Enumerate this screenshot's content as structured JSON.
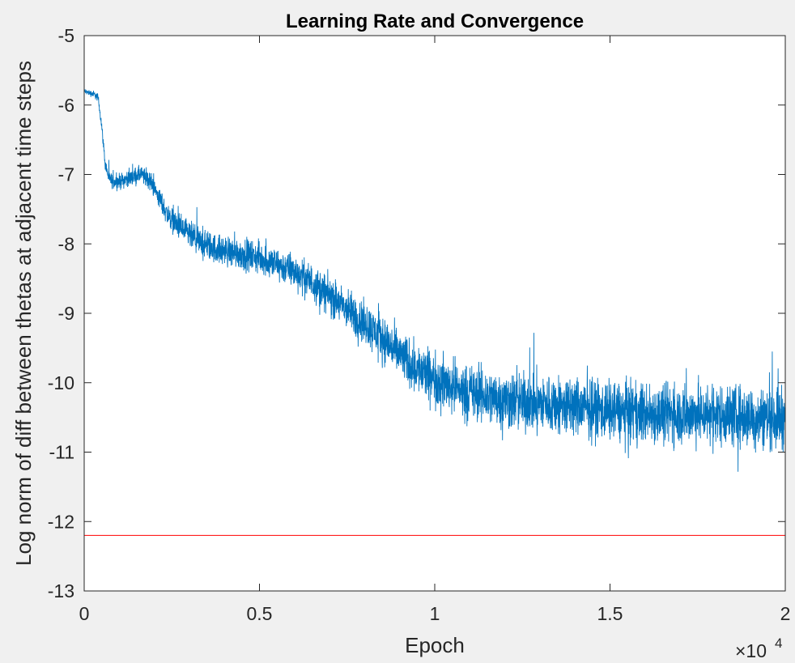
{
  "chart_data": {
    "type": "line",
    "title": "Learning Rate and Convergence",
    "xlabel": "Epoch",
    "ylabel": "Log norm of diff between thetas at adjacent time steps",
    "xlim": [
      0,
      20000
    ],
    "ylim": [
      -13,
      -5
    ],
    "x_ticks": [
      0,
      5000,
      10000,
      15000,
      20000
    ],
    "x_tick_labels": [
      "0",
      "0.5",
      "1",
      "1.5",
      "2"
    ],
    "x_exponent_label": {
      "base": "×10",
      "exponent": "4"
    },
    "y_ticks": [
      -5,
      -6,
      -7,
      -8,
      -9,
      -10,
      -11,
      -12,
      -13
    ],
    "y_tick_labels": [
      "-5",
      "-6",
      "-7",
      "-8",
      "-9",
      "-10",
      "-11",
      "-12",
      "-13"
    ],
    "grid": false,
    "series": [
      {
        "color": "#0072BD",
        "style": "noisy-line",
        "points": [
          [
            0,
            -5.8
          ],
          [
            300,
            -5.85
          ],
          [
            400,
            -5.9
          ],
          [
            500,
            -6.3
          ],
          [
            600,
            -6.85
          ],
          [
            700,
            -7.05
          ],
          [
            800,
            -7.1
          ],
          [
            1000,
            -7.1
          ],
          [
            1300,
            -7.05
          ],
          [
            1600,
            -7.0
          ],
          [
            1900,
            -7.1
          ],
          [
            2100,
            -7.3
          ],
          [
            2400,
            -7.6
          ],
          [
            2800,
            -7.8
          ],
          [
            3200,
            -7.95
          ],
          [
            3600,
            -8.05
          ],
          [
            4000,
            -8.1
          ],
          [
            4500,
            -8.15
          ],
          [
            5000,
            -8.2
          ],
          [
            5500,
            -8.3
          ],
          [
            6000,
            -8.4
          ],
          [
            6500,
            -8.55
          ],
          [
            7000,
            -8.75
          ],
          [
            7500,
            -8.95
          ],
          [
            8000,
            -9.15
          ],
          [
            8500,
            -9.35
          ],
          [
            9000,
            -9.6
          ],
          [
            9500,
            -9.8
          ],
          [
            10000,
            -9.95
          ],
          [
            10500,
            -10.05
          ],
          [
            11000,
            -10.15
          ],
          [
            12000,
            -10.25
          ],
          [
            13000,
            -10.3
          ],
          [
            14000,
            -10.35
          ],
          [
            15000,
            -10.4
          ],
          [
            16000,
            -10.45
          ],
          [
            17000,
            -10.45
          ],
          [
            18000,
            -10.45
          ],
          [
            19000,
            -10.5
          ],
          [
            20000,
            -10.5
          ]
        ],
        "spread": [
          [
            0,
            0.05
          ],
          [
            500,
            0.1
          ],
          [
            700,
            0.15
          ],
          [
            2000,
            0.2
          ],
          [
            3000,
            0.3
          ],
          [
            6000,
            0.35
          ],
          [
            8000,
            0.45
          ],
          [
            10000,
            0.55
          ],
          [
            12000,
            0.6
          ],
          [
            20000,
            0.65
          ]
        ]
      },
      {
        "color": "#FF0000",
        "style": "constant",
        "value": -12.2
      }
    ]
  }
}
